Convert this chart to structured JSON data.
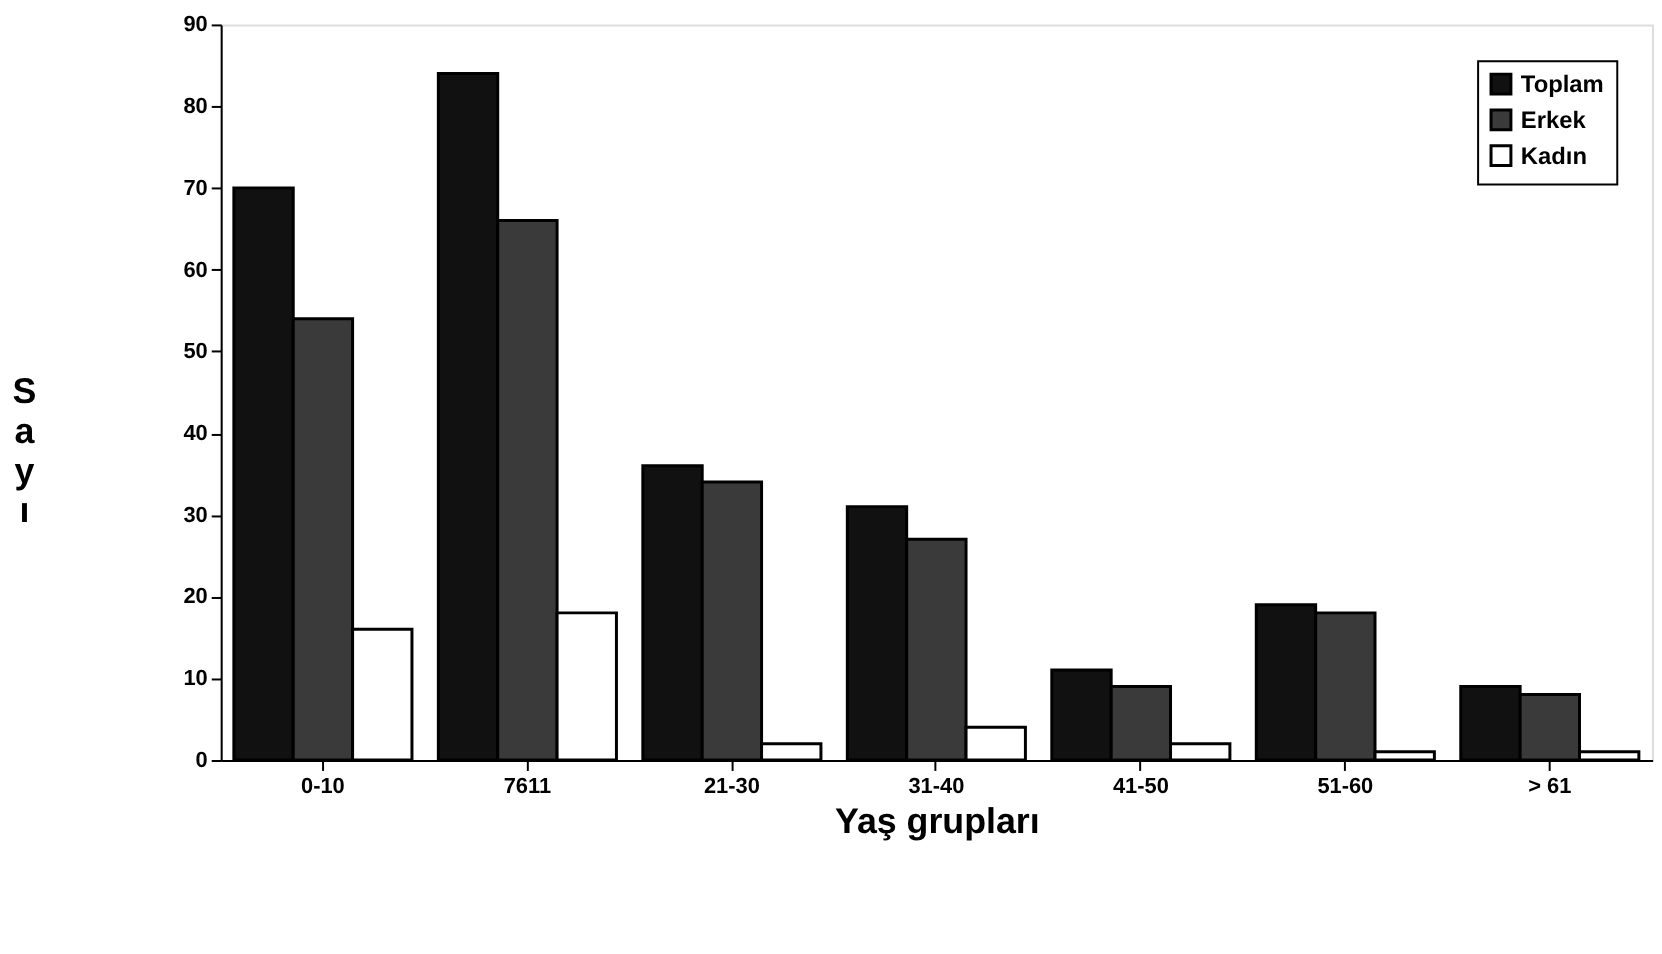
{
  "chart_data": {
    "type": "bar",
    "xlabel": "Yaş grupları",
    "ylabel": "Sayı",
    "categories": [
      "0-10",
      "7611",
      "21-30",
      "31-40",
      "41-50",
      "51-60",
      "> 61"
    ],
    "series": [
      {
        "name": "Toplam",
        "color": "#111111",
        "values": [
          70,
          84,
          36,
          31,
          11,
          19,
          9
        ]
      },
      {
        "name": "Erkek",
        "color": "#3a3a3a",
        "values": [
          54,
          66,
          34,
          27,
          9,
          18,
          8
        ]
      },
      {
        "name": "Kadın",
        "color": "#ffffff",
        "values": [
          16,
          18,
          2,
          4,
          2,
          1,
          1
        ]
      }
    ],
    "ylim": [
      0,
      90
    ],
    "yticks": [
      0,
      10,
      20,
      30,
      40,
      50,
      60,
      70,
      80,
      90
    ],
    "grid": false,
    "legend": "top right"
  }
}
